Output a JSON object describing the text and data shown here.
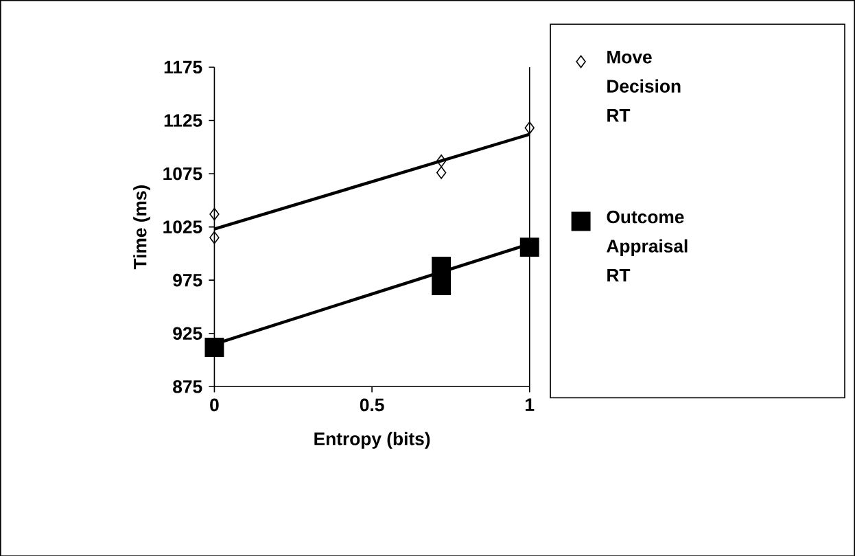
{
  "chart_data": {
    "type": "scatter",
    "xlabel": "Entropy (bits)",
    "ylabel": "Time (ms)",
    "xlim": [
      0,
      1
    ],
    "xticks": [
      0,
      0.5,
      1
    ],
    "ylim": [
      875,
      1175
    ],
    "yticks": [
      875,
      925,
      975,
      1025,
      1075,
      1125,
      1175
    ],
    "grid": false,
    "legend": "right",
    "series": [
      {
        "name": "Move Decision RT",
        "marker": "diamond",
        "color": "#000000",
        "x": [
          0,
          0,
          0.72,
          0.72,
          1
        ],
        "values": [
          1037,
          1015,
          1087,
          1076,
          1118
        ]
      },
      {
        "name": "Outcome Appraisal RT",
        "marker": "square",
        "color": "#000000",
        "x": [
          0,
          0.72,
          0.72,
          1
        ],
        "values": [
          912,
          988,
          970,
          1006
        ]
      },
      {
        "type": "line",
        "marker": "none",
        "color": "#000000",
        "x": [
          0,
          1
        ],
        "values": [
          1023,
          1112
        ]
      },
      {
        "type": "line",
        "marker": "none",
        "color": "#000000",
        "x": [
          0,
          1
        ],
        "values": [
          915,
          1009
        ]
      }
    ]
  }
}
